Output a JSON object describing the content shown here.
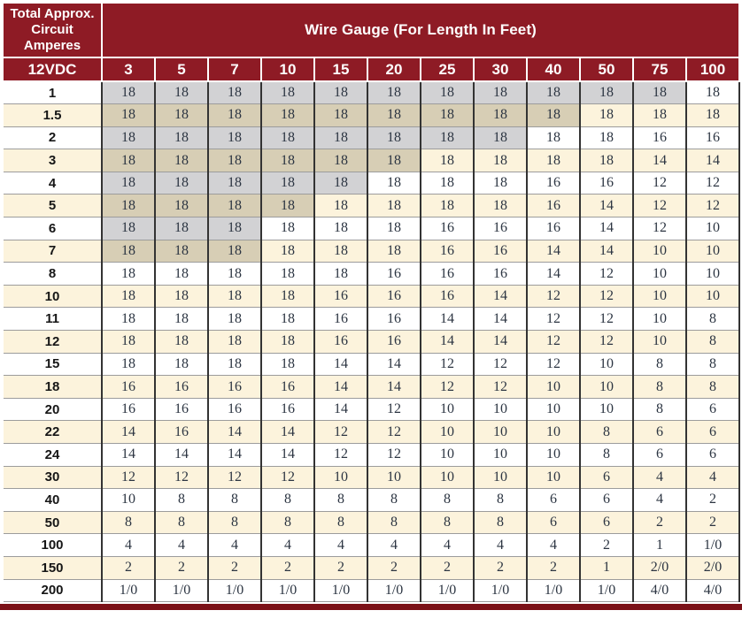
{
  "table": {
    "corner_header": "Total Approx. Circuit Amperes",
    "main_header": "Wire Gauge (For Length In Feet)",
    "sub_header": "12VDC",
    "columns": [
      "3",
      "5",
      "7",
      "10",
      "15",
      "20",
      "25",
      "30",
      "40",
      "50",
      "75",
      "100"
    ],
    "rows": [
      {
        "amps": "1",
        "shaded": 11,
        "values": [
          "18",
          "18",
          "18",
          "18",
          "18",
          "18",
          "18",
          "18",
          "18",
          "18",
          "18",
          "18"
        ]
      },
      {
        "amps": "1.5",
        "shaded": 9,
        "values": [
          "18",
          "18",
          "18",
          "18",
          "18",
          "18",
          "18",
          "18",
          "18",
          "18",
          "18",
          "18"
        ]
      },
      {
        "amps": "2",
        "shaded": 8,
        "values": [
          "18",
          "18",
          "18",
          "18",
          "18",
          "18",
          "18",
          "18",
          "18",
          "18",
          "16",
          "16"
        ]
      },
      {
        "amps": "3",
        "shaded": 6,
        "values": [
          "18",
          "18",
          "18",
          "18",
          "18",
          "18",
          "18",
          "18",
          "18",
          "18",
          "14",
          "14"
        ]
      },
      {
        "amps": "4",
        "shaded": 5,
        "values": [
          "18",
          "18",
          "18",
          "18",
          "18",
          "18",
          "18",
          "18",
          "16",
          "16",
          "12",
          "12"
        ]
      },
      {
        "amps": "5",
        "shaded": 4,
        "values": [
          "18",
          "18",
          "18",
          "18",
          "18",
          "18",
          "18",
          "18",
          "16",
          "14",
          "12",
          "12"
        ]
      },
      {
        "amps": "6",
        "shaded": 3,
        "values": [
          "18",
          "18",
          "18",
          "18",
          "18",
          "18",
          "16",
          "16",
          "16",
          "14",
          "12",
          "10"
        ]
      },
      {
        "amps": "7",
        "shaded": 3,
        "values": [
          "18",
          "18",
          "18",
          "18",
          "18",
          "18",
          "16",
          "16",
          "14",
          "14",
          "10",
          "10"
        ]
      },
      {
        "amps": "8",
        "shaded": 0,
        "values": [
          "18",
          "18",
          "18",
          "18",
          "18",
          "16",
          "16",
          "16",
          "14",
          "12",
          "10",
          "10"
        ]
      },
      {
        "amps": "10",
        "shaded": 0,
        "values": [
          "18",
          "18",
          "18",
          "18",
          "16",
          "16",
          "16",
          "14",
          "12",
          "12",
          "10",
          "10"
        ]
      },
      {
        "amps": "11",
        "shaded": 0,
        "values": [
          "18",
          "18",
          "18",
          "18",
          "16",
          "16",
          "14",
          "14",
          "12",
          "12",
          "10",
          "8"
        ]
      },
      {
        "amps": "12",
        "shaded": 0,
        "values": [
          "18",
          "18",
          "18",
          "18",
          "16",
          "16",
          "14",
          "14",
          "12",
          "12",
          "10",
          "8"
        ]
      },
      {
        "amps": "15",
        "shaded": 0,
        "values": [
          "18",
          "18",
          "18",
          "18",
          "14",
          "14",
          "12",
          "12",
          "12",
          "10",
          "8",
          "8"
        ]
      },
      {
        "amps": "18",
        "shaded": 0,
        "values": [
          "16",
          "16",
          "16",
          "16",
          "14",
          "14",
          "12",
          "12",
          "10",
          "10",
          "8",
          "8"
        ]
      },
      {
        "amps": "20",
        "shaded": 0,
        "values": [
          "16",
          "16",
          "16",
          "16",
          "14",
          "12",
          "10",
          "10",
          "10",
          "10",
          "8",
          "6"
        ]
      },
      {
        "amps": "22",
        "shaded": 0,
        "values": [
          "14",
          "16",
          "14",
          "14",
          "12",
          "12",
          "10",
          "10",
          "10",
          "8",
          "6",
          "6"
        ]
      },
      {
        "amps": "24",
        "shaded": 0,
        "values": [
          "14",
          "14",
          "14",
          "14",
          "12",
          "12",
          "10",
          "10",
          "10",
          "8",
          "6",
          "6"
        ]
      },
      {
        "amps": "30",
        "shaded": 0,
        "values": [
          "12",
          "12",
          "12",
          "12",
          "10",
          "10",
          "10",
          "10",
          "10",
          "6",
          "4",
          "4"
        ]
      },
      {
        "amps": "40",
        "shaded": 0,
        "values": [
          "10",
          "8",
          "8",
          "8",
          "8",
          "8",
          "8",
          "8",
          "6",
          "6",
          "4",
          "2"
        ]
      },
      {
        "amps": "50",
        "shaded": 0,
        "values": [
          "8",
          "8",
          "8",
          "8",
          "8",
          "8",
          "8",
          "8",
          "6",
          "6",
          "2",
          "2"
        ]
      },
      {
        "amps": "100",
        "shaded": 0,
        "values": [
          "4",
          "4",
          "4",
          "4",
          "4",
          "4",
          "4",
          "4",
          "4",
          "2",
          "1",
          "1/0"
        ]
      },
      {
        "amps": "150",
        "shaded": 0,
        "values": [
          "2",
          "2",
          "2",
          "2",
          "2",
          "2",
          "2",
          "2",
          "2",
          "1",
          "2/0",
          "2/0"
        ]
      },
      {
        "amps": "200",
        "shaded": 0,
        "values": [
          "1/0",
          "1/0",
          "1/0",
          "1/0",
          "1/0",
          "1/0",
          "1/0",
          "1/0",
          "1/0",
          "1/0",
          "4/0",
          "4/0"
        ]
      }
    ]
  },
  "colors": {
    "header_maroon": "#8E1B25",
    "bottom_bar": "#7B1117",
    "cream_row": "#FCF3DC",
    "gray_shading": "#D2D2D4",
    "tan_shading": "#D7CEB5",
    "data_text": "#2C3542"
  }
}
